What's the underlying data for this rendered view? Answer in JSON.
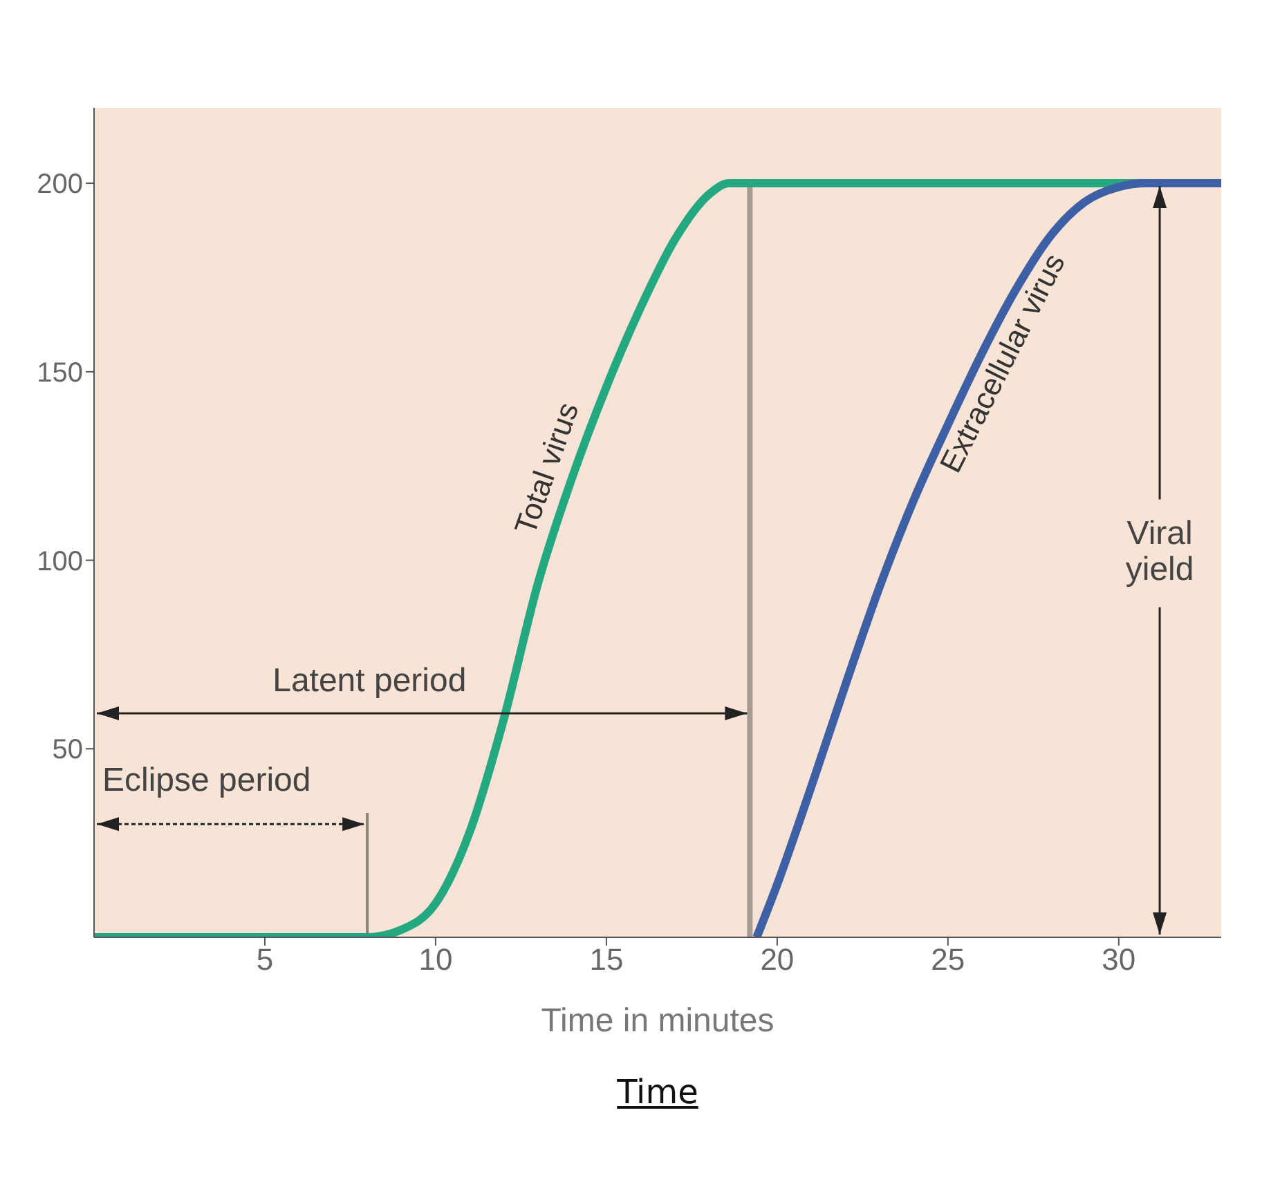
{
  "chart_data": {
    "type": "line",
    "xlabel": "Time in minutes",
    "xlim": [
      0,
      33
    ],
    "xticks": [
      5,
      10,
      15,
      20,
      25,
      30
    ],
    "ylim": [
      0,
      220
    ],
    "yticks": [
      50,
      100,
      150,
      200
    ],
    "marker": "none",
    "line_style": "solid",
    "series": [
      {
        "name": "Total virus",
        "color": "#23a882",
        "x": [
          0,
          8,
          9,
          10,
          11,
          12,
          13,
          14,
          15,
          16,
          17,
          18,
          18.6,
          33
        ],
        "values": [
          0,
          0,
          2,
          9,
          28,
          58,
          94,
          122,
          146,
          167,
          185,
          197,
          200,
          200
        ]
      },
      {
        "name": "Extracellular virus",
        "color": "#3d5fa6",
        "x": [
          19.4,
          20,
          21,
          22,
          23,
          24,
          25,
          26,
          27,
          28,
          29,
          30,
          30.8,
          33
        ],
        "values": [
          0,
          14,
          40,
          67,
          93,
          116,
          136,
          155,
          172,
          186,
          195,
          199,
          200,
          200
        ]
      }
    ],
    "ref_lines": [
      {
        "axis": "x",
        "value": 8,
        "label": null,
        "color": "#8a8078"
      },
      {
        "axis": "x",
        "value": 19.2,
        "label": null,
        "color": "#a89c94"
      }
    ],
    "annotations": [
      "Latent period",
      {
        "text": "Eclipse period",
        "x": 8,
        "y": 30
      },
      {
        "text": "Viral yield",
        "x": 31.2,
        "y": 200
      },
      "Time"
    ]
  }
}
